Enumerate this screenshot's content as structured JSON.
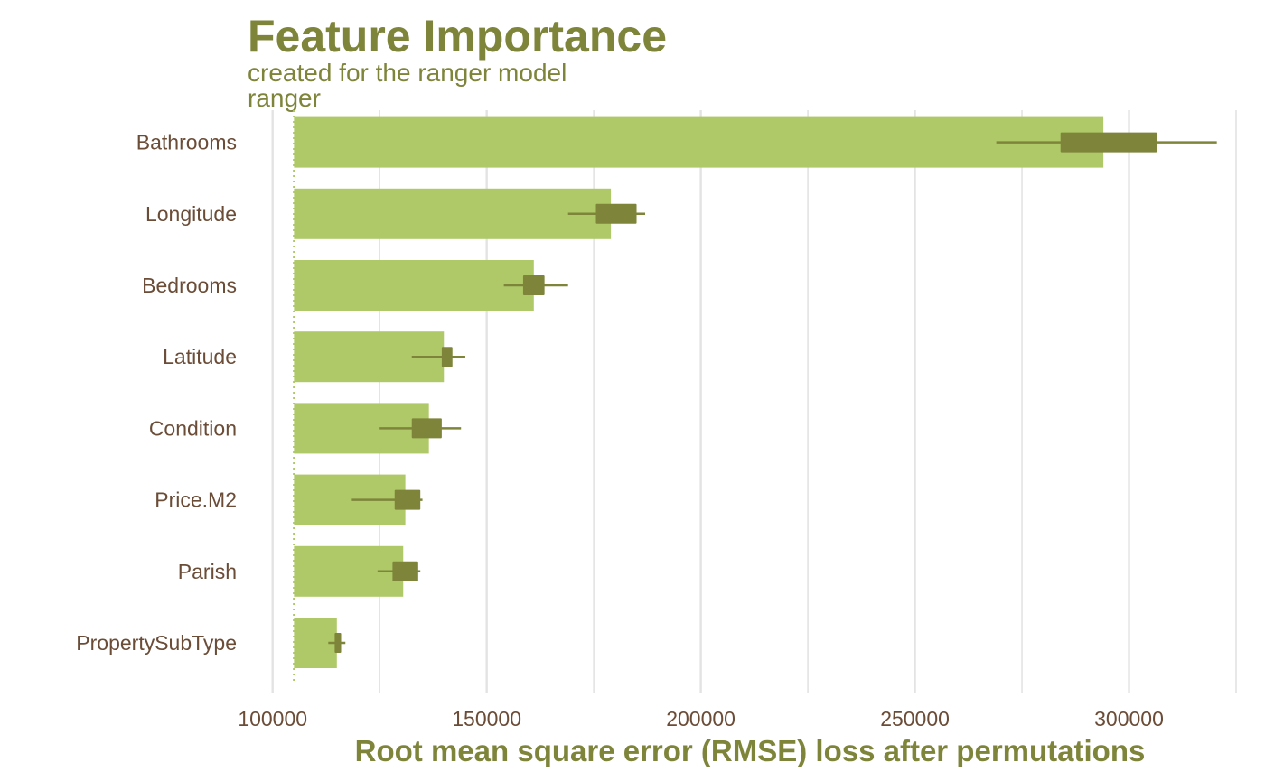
{
  "chart_data": {
    "type": "bar",
    "orientation": "horizontal",
    "title": "Feature Importance",
    "subtitle_lines": [
      "created for the ranger model",
      "ranger"
    ],
    "xlabel": "Root mean square error (RMSE) loss after permutations",
    "ylabel": "",
    "xlim": [
      95000,
      325000
    ],
    "x_ticks": [
      100000,
      150000,
      200000,
      250000,
      300000
    ],
    "baseline": 105000,
    "categories": [
      "Bathrooms",
      "Longitude",
      "Bedrooms",
      "Latitude",
      "Condition",
      "Price.M2",
      "Parish",
      "PropertySubType"
    ],
    "values": [
      294000,
      179000,
      161000,
      140000,
      136500,
      131000,
      130500,
      115000
    ],
    "boxplots": [
      {
        "min": 269000,
        "q1": 284000,
        "q3": 306500,
        "max": 320500
      },
      {
        "min": 169000,
        "q1": 175500,
        "q3": 185000,
        "max": 187000
      },
      {
        "min": 154000,
        "q1": 158500,
        "q3": 163500,
        "max": 169000
      },
      {
        "min": 132500,
        "q1": 139500,
        "q3": 142000,
        "max": 145000
      },
      {
        "min": 125000,
        "q1": 132500,
        "q3": 139500,
        "max": 144000
      },
      {
        "min": 118500,
        "q1": 128500,
        "q3": 134500,
        "max": 135000
      },
      {
        "min": 124500,
        "q1": 128000,
        "q3": 134000,
        "max": 134500
      },
      {
        "min": 113000,
        "q1": 114500,
        "q3": 116000,
        "max": 117000
      }
    ],
    "grid": true,
    "legend": "none",
    "colors": {
      "bar": "#afc968",
      "box": "#7e853a",
      "title": "#7e853a",
      "axis_text": "#6b4c37",
      "grid": "#e3e3e3",
      "baseline": "#afc968"
    }
  }
}
